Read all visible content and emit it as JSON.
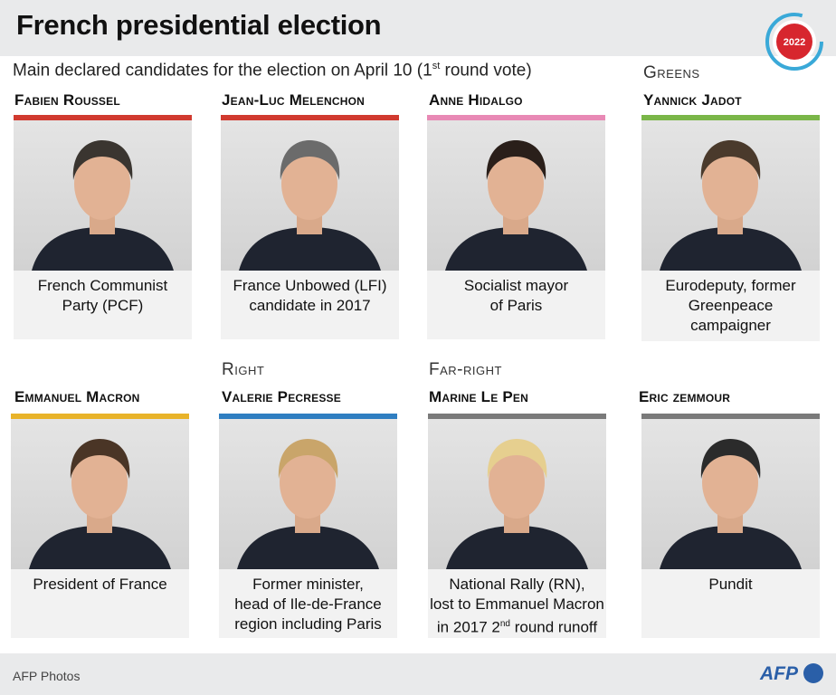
{
  "header": {
    "title": "French presidential election",
    "subtitle": "Main declared candidates for the election on April 10 (1",
    "subtitle_sup": "st",
    "subtitle_end": " round vote)",
    "badge_year": "2022"
  },
  "groups": {
    "greens": "Greens",
    "right": "Right",
    "far_right": "Far-right"
  },
  "candidates": [
    {
      "name": "Fabien Roussel",
      "caption_lines": [
        "French Communist",
        "Party (PCF)"
      ],
      "color": "#d13a2f"
    },
    {
      "name": "Jean-Luc Melenchon",
      "caption_lines": [
        "France Unbowed (LFI)",
        "candidate in 2017"
      ],
      "color": "#d13a2f"
    },
    {
      "name": "Anne Hidalgo",
      "caption_lines": [
        "Socialist mayor",
        "of Paris"
      ],
      "color": "#e889b5"
    },
    {
      "name": "Yannick Jadot",
      "caption_lines": [
        "Eurodeputy, former",
        "Greenpeace",
        "campaigner"
      ],
      "color": "#7ab648"
    },
    {
      "name": "Emmanuel Macron",
      "caption_lines": [
        "President of France"
      ],
      "color": "#e8b32a"
    },
    {
      "name": "Valerie Pecresse",
      "caption_lines": [
        "Former minister,",
        "head of Ile-de-France",
        "region including Paris"
      ],
      "color": "#2f7ec1"
    },
    {
      "name": "Marine Le Pen",
      "caption_lines": [
        "National Rally (RN),",
        "lost to Emmanuel Macron",
        "in 2017 2",
        "nd",
        " round runoff"
      ],
      "color": "#7a7a7a"
    },
    {
      "name": "Eric zemmour",
      "caption_lines": [
        "Pundit"
      ],
      "color": "#7a7a7a"
    }
  ],
  "footer": {
    "credit": "AFP Photos",
    "logo": "AFP"
  }
}
